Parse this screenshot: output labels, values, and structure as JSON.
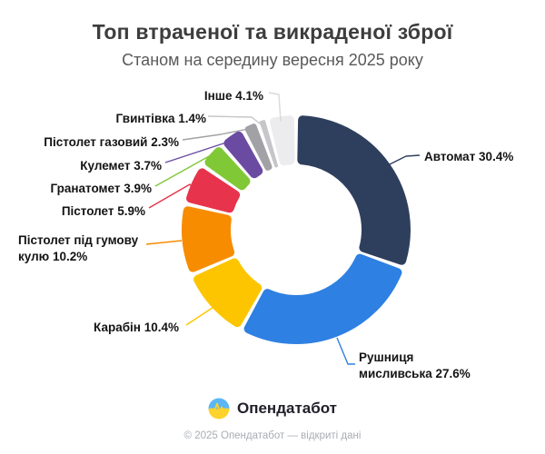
{
  "header": {
    "title": "Топ втраченої та викраденої зброї",
    "subtitle": "Станом на середину вересня 2025 року"
  },
  "chart_data": {
    "type": "pie",
    "variant": "donut",
    "title": "Топ втраченої та викраденої зброї",
    "subtitle": "Станом на середину вересня 2025 року",
    "unit": "%",
    "start_angle_deg": 0,
    "direction": "clockwise",
    "legend_position": "callout-labels",
    "slices": [
      {
        "label": "Автомат",
        "value": 30.4,
        "color": "#2e3f5e"
      },
      {
        "label": "Рушниця мисливська",
        "value": 27.6,
        "color": "#2e80e2"
      },
      {
        "label": "Карабін",
        "value": 10.4,
        "color": "#fdc500"
      },
      {
        "label": "Пістолет під гумову кулю",
        "value": 10.2,
        "color": "#f88c00"
      },
      {
        "label": "Пістолет",
        "value": 5.9,
        "color": "#e7334b"
      },
      {
        "label": "Гранатомет",
        "value": 3.9,
        "color": "#81c837"
      },
      {
        "label": "Кулемет",
        "value": 3.7,
        "color": "#6b4aa2"
      },
      {
        "label": "Пістолет газовий",
        "value": 2.3,
        "color": "#a2a2a6"
      },
      {
        "label": "Гвинтівка",
        "value": 1.4,
        "color": "#c6c6ca"
      },
      {
        "label": "Інше",
        "value": 4.1,
        "color": "#ececee",
        "line_color": "#d9d9d9"
      }
    ]
  },
  "footer": {
    "brand": "Опендатабот",
    "copyright": "© 2025 Опендатабот — відкриті дані"
  },
  "colors": {
    "background": "#ffffff",
    "title": "#3d3d3d",
    "subtitle": "#595959",
    "label": "#141414",
    "logo_blue": "#5ab7f3",
    "logo_yellow": "#ffd22c"
  }
}
